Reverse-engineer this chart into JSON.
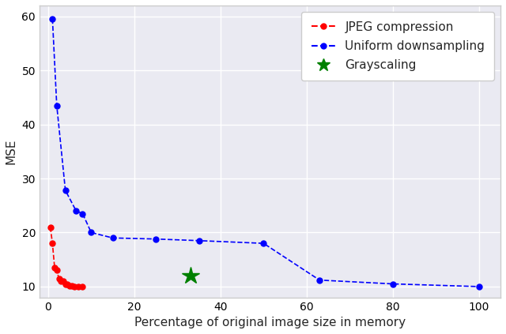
{
  "jpeg_x": [
    0.5,
    1.0,
    1.5,
    2.0,
    2.5,
    3.0,
    3.5,
    4.0,
    4.5,
    5.0,
    5.5,
    6.0,
    7.0,
    8.0
  ],
  "jpeg_y": [
    21.0,
    18.0,
    13.5,
    13.0,
    11.5,
    11.0,
    11.0,
    10.5,
    10.5,
    10.2,
    10.1,
    10.0,
    10.0,
    10.0
  ],
  "uniform_x": [
    1.0,
    2.0,
    4.0,
    6.5,
    8.0,
    10.0,
    15.0,
    25.0,
    35.0,
    50.0,
    63.0,
    80.0,
    100.0
  ],
  "uniform_y": [
    59.5,
    43.5,
    27.8,
    24.0,
    23.5,
    20.0,
    19.0,
    18.8,
    18.5,
    18.0,
    11.2,
    10.5,
    10.0
  ],
  "gray_x": [
    33.0
  ],
  "gray_y": [
    12.0
  ],
  "jpeg_color": "#ff0000",
  "uniform_color": "#0000ff",
  "gray_color": "#008000",
  "xlabel": "Percentage of original image size in memory",
  "ylabel": "MSE",
  "xlim": [
    -2,
    105
  ],
  "ylim": [
    8,
    62
  ],
  "yticks": [
    10,
    20,
    30,
    40,
    50,
    60
  ],
  "xticks": [
    0,
    20,
    40,
    60,
    80,
    100
  ],
  "legend_jpeg": "JPEG compression",
  "legend_uniform": "Uniform downsampling",
  "legend_gray": "Grayscaling",
  "bg_color": "#eaeaf2",
  "grid_color": "white"
}
